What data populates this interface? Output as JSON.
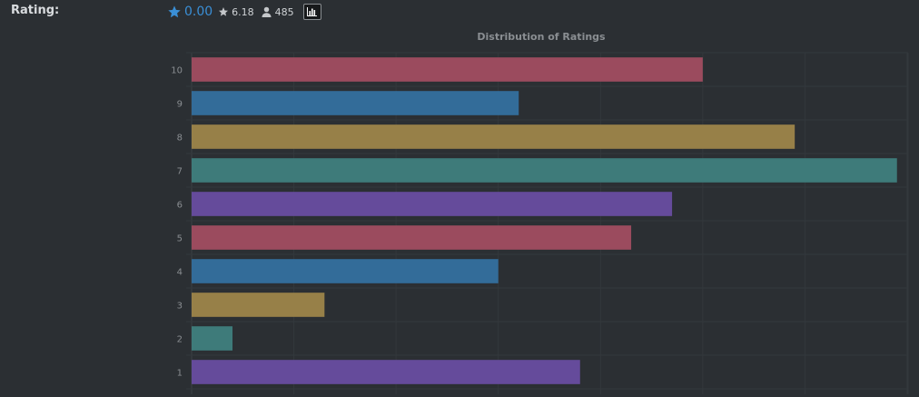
{
  "header": {
    "label": "Rating:",
    "user_rating": "0.00",
    "average_rating": "6.18",
    "vote_count": "485",
    "icons": {
      "user_rating": "star-icon",
      "average_rating": "star-icon",
      "vote_count": "user-icon",
      "chart_toggle": "bar-chart-icon"
    },
    "colors": {
      "user_rating": "#3a8fd6"
    }
  },
  "chart_data": {
    "type": "bar",
    "orientation": "horizontal",
    "title": "Distribution of Ratings",
    "categories": [
      "10",
      "9",
      "8",
      "7",
      "6",
      "5",
      "4",
      "3",
      "2",
      "1"
    ],
    "values": [
      60,
      42,
      69,
      79,
      57,
      53,
      40,
      23,
      14,
      48
    ],
    "colors": [
      "#9b4b5e",
      "#336c99",
      "#978048",
      "#3e7b7a",
      "#654b9b",
      "#9b4b5e",
      "#336c99",
      "#978048",
      "#3e7b7a",
      "#654b9b"
    ],
    "xlim": [
      10,
      80
    ],
    "xticks": [
      10,
      20,
      30,
      40,
      50,
      60,
      70,
      80
    ],
    "grid": true,
    "legend": "none",
    "xlabel": "",
    "ylabel": ""
  }
}
